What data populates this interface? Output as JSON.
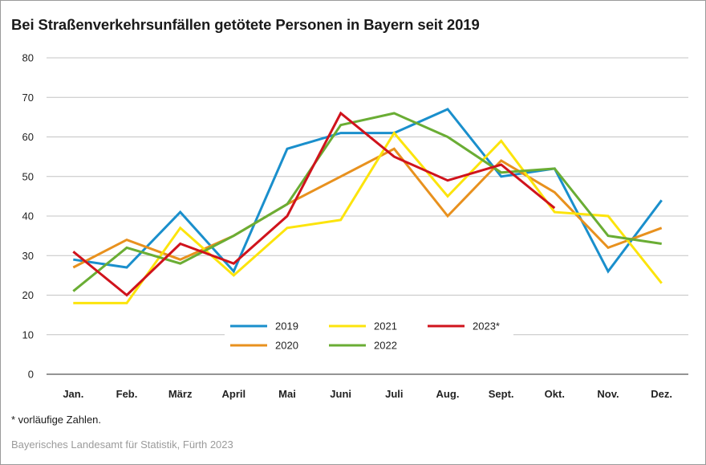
{
  "title": "Bei Straßenverkehrsunfällen getötete Personen in Bayern seit 2019",
  "footnote": "* vorläufige Zahlen.",
  "source": "Bayerisches Landesamt für Statistik, Fürth 2023",
  "chart_data": {
    "type": "line",
    "title": "Bei Straßenverkehrsunfällen getötete Personen in Bayern seit 2019",
    "xlabel": "",
    "ylabel": "",
    "ylim": [
      0,
      80
    ],
    "yticks": [
      0,
      10,
      20,
      30,
      40,
      50,
      60,
      70,
      80
    ],
    "grid": "horizontal",
    "legend_position": "center-bottom",
    "categories": [
      "Jan.",
      "Feb.",
      "März",
      "April",
      "Mai",
      "Juni",
      "Juli",
      "Aug.",
      "Sept.",
      "Okt.",
      "Nov.",
      "Dez."
    ],
    "series": [
      {
        "name": "2019",
        "color": "#1a8fcc",
        "values": [
          29,
          27,
          41,
          26,
          57,
          61,
          61,
          67,
          50,
          52,
          26,
          44
        ]
      },
      {
        "name": "2020",
        "color": "#e8911e",
        "values": [
          27,
          34,
          29,
          35,
          43,
          50,
          57,
          40,
          54,
          46,
          32,
          37
        ]
      },
      {
        "name": "2021",
        "color": "#fce40c",
        "values": [
          18,
          18,
          37,
          25,
          37,
          39,
          61,
          45,
          59,
          41,
          40,
          23
        ]
      },
      {
        "name": "2022",
        "color": "#6aad34",
        "values": [
          21,
          32,
          28,
          35,
          43,
          63,
          66,
          60,
          51,
          52,
          35,
          33
        ]
      },
      {
        "name": "2023*",
        "color": "#d0131c",
        "values": [
          31,
          20,
          33,
          28,
          40,
          66,
          55,
          49,
          53,
          42,
          null,
          null
        ]
      }
    ]
  }
}
